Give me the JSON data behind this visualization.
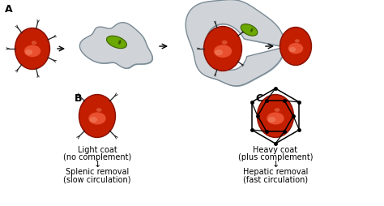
{
  "bg_color": "#ffffff",
  "rbc_red": "#C41E00",
  "rbc_dark": "#8B1000",
  "rbc_highlight": "#E85030",
  "rbc_shine": "#F08060",
  "mac_fill": "#D0D4D8",
  "mac_edge": "#909090",
  "mac_fill2": "#B8C0C8",
  "nuc_green": "#6BA800",
  "nuc_dark": "#3A6000",
  "label_A": "A",
  "label_B": "B",
  "label_C": "C",
  "text_B1": "Light coat",
  "text_B2": "(no complement)",
  "text_B3": "↓",
  "text_B4": "Splenic removal",
  "text_B5": "(slow circulation)",
  "text_C1": "Heavy coat",
  "text_C2": "(plus complement)",
  "text_C3": "↓",
  "text_C4": "Hepatic removal",
  "text_C5": "(fast circulation)",
  "fs_label": 9,
  "fs_text": 7,
  "fs_arrow": 10
}
